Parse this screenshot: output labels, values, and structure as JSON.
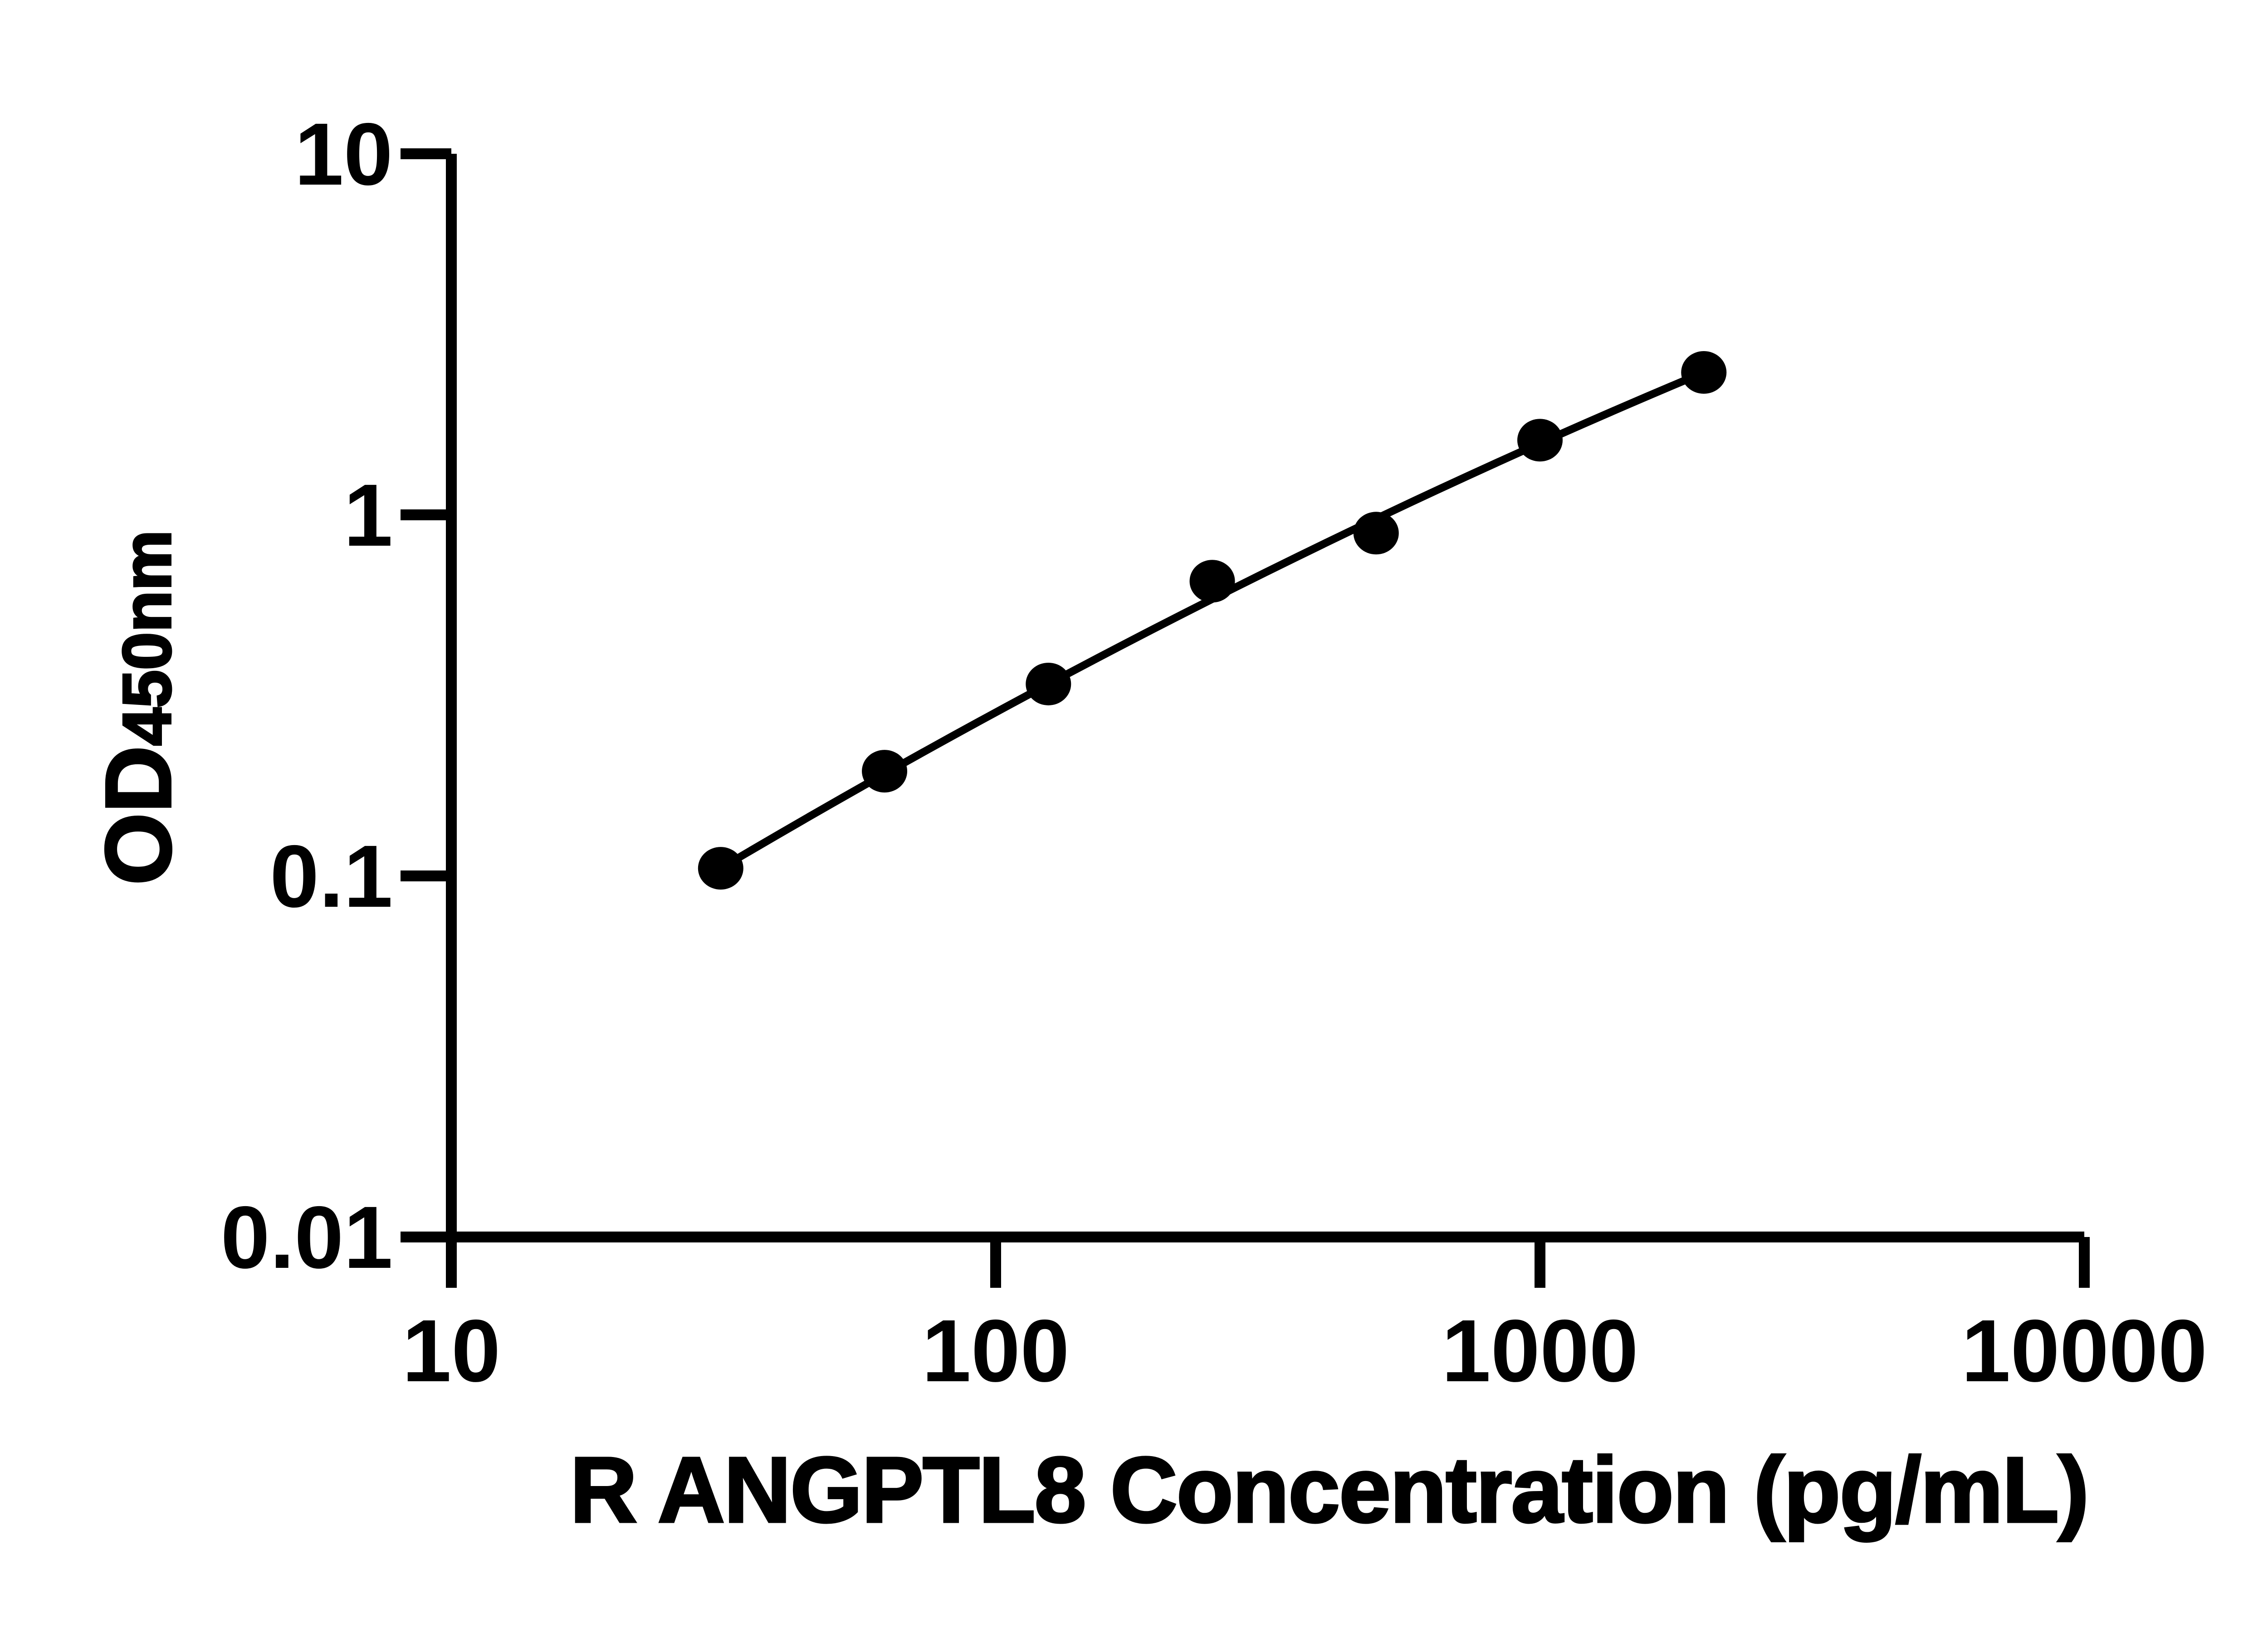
{
  "figure": {
    "background_color": "#ffffff",
    "ink_color": "#000000"
  },
  "chart_data": {
    "type": "scatter",
    "subtype": "standard-curve-with-fit-line",
    "title": "",
    "xlabel": "R ANGPTL8 Concentration (pg/mL)",
    "ylabel_main": "OD",
    "ylabel_subscript": "450nm",
    "x_scale": "log10",
    "y_scale": "log10",
    "xlim": [
      10,
      10000
    ],
    "ylim": [
      0.01,
      10
    ],
    "x_ticks": [
      {
        "value": 10,
        "label": "10"
      },
      {
        "value": 100,
        "label": "100"
      },
      {
        "value": 1000,
        "label": "1000"
      },
      {
        "value": 10000,
        "label": "10000"
      }
    ],
    "y_ticks": [
      {
        "value": 10,
        "label": "10"
      },
      {
        "value": 1,
        "label": "1"
      },
      {
        "value": 0.1,
        "label": "0.1"
      },
      {
        "value": 0.01,
        "label": "0.01"
      }
    ],
    "grid": false,
    "legend": "none",
    "series": [
      {
        "name": "standard-curve",
        "marker": "filled-circle",
        "marker_color": "#000000",
        "line": "smooth-fit",
        "line_color": "#000000",
        "x": [
          31.25,
          62.5,
          125,
          250,
          500,
          1000,
          2000
        ],
        "y": [
          0.105,
          0.195,
          0.34,
          0.655,
          0.89,
          1.61,
          2.48
        ]
      }
    ]
  }
}
